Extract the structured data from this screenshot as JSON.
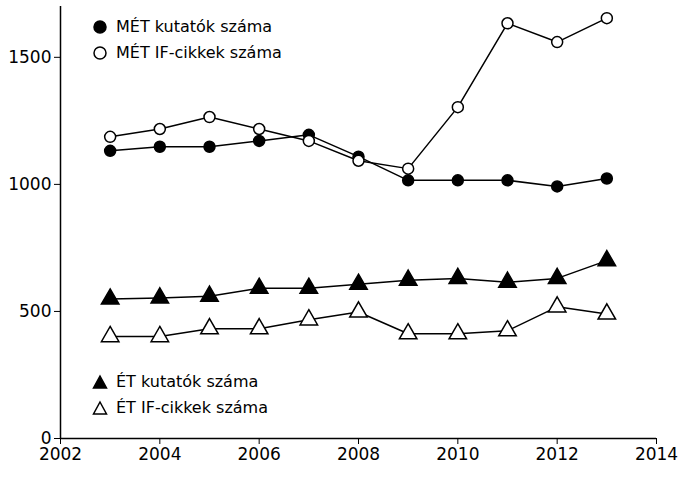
{
  "chart_data": {
    "type": "line",
    "x": [
      2003,
      2004,
      2005,
      2006,
      2007,
      2008,
      2009,
      2010,
      2011,
      2012,
      2013
    ],
    "xlim": [
      2002,
      2014
    ],
    "xticks": [
      2002,
      2004,
      2006,
      2008,
      2010,
      2012,
      2014
    ],
    "ylim": [
      0,
      1700
    ],
    "yticks": [
      0,
      500,
      1000,
      1500
    ],
    "series": [
      {
        "name": "MÉT kutatók száma",
        "color": "#000000",
        "marker": "circle",
        "values": [
          1132,
          1148,
          1148,
          1171,
          1195,
          1109,
          1016,
          1016,
          1016,
          992,
          1023
        ]
      },
      {
        "name": "MÉT IF-cikkek száma",
        "color": "#000000",
        "marker": "circle-open",
        "values": [
          1187,
          1218,
          1265,
          1218,
          1171,
          1093,
          1062,
          1304,
          1634,
          1560,
          1654
        ]
      },
      {
        "name": "ÉT kutatók száma",
        "color": "#000000",
        "marker": "triangle",
        "values": [
          549,
          553,
          560,
          591,
          591,
          607,
          623,
          630,
          615,
          630,
          700
        ]
      },
      {
        "name": "ÉT IF-cikkek száma",
        "color": "#000000",
        "marker": "triangle-open",
        "values": [
          401,
          401,
          432,
          432,
          467,
          498,
          412,
          412,
          424,
          518,
          490
        ]
      }
    ]
  }
}
